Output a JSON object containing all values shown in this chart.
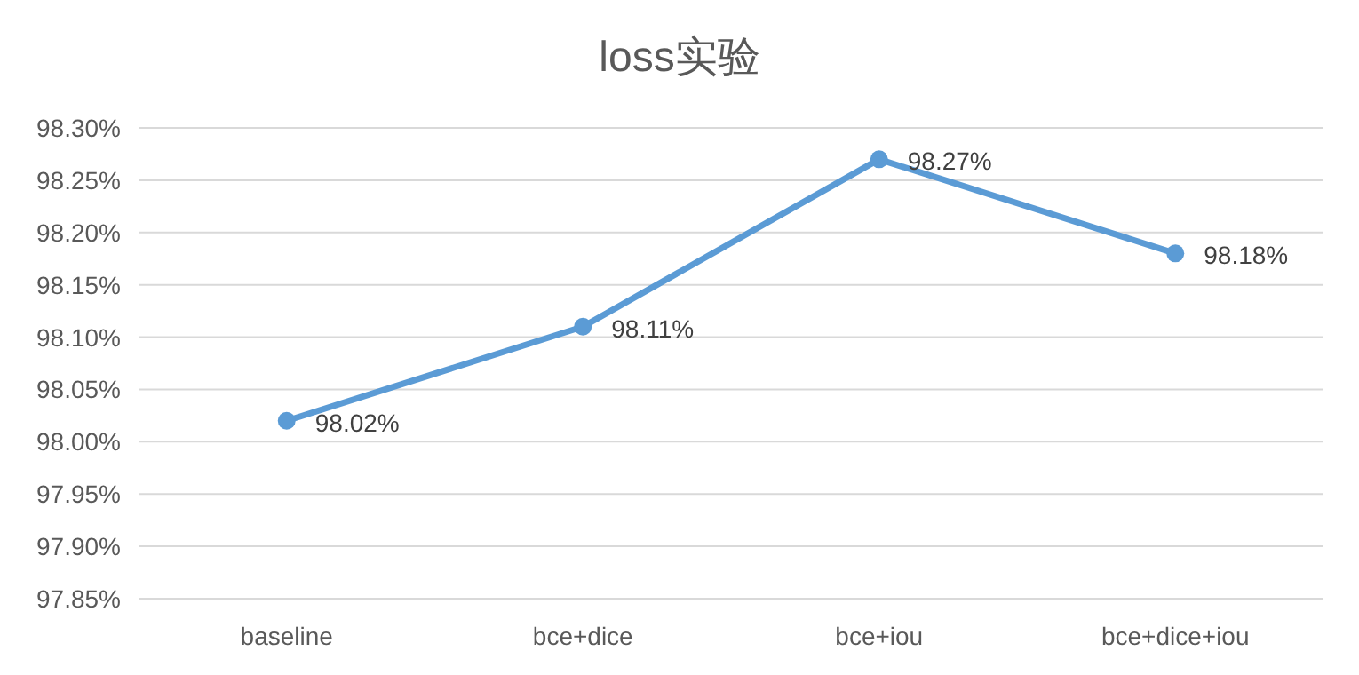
{
  "chart_data": {
    "type": "line",
    "title": "loss实验",
    "categories": [
      "baseline",
      "bce+dice",
      "bce+iou",
      "bce+dice+iou"
    ],
    "series": [
      {
        "color": "#5b9bd5",
        "values": [
          98.02,
          98.11,
          98.27,
          98.18
        ],
        "value_labels": [
          "98.02%",
          "98.11%",
          "98.27%",
          "98.18%"
        ]
      }
    ],
    "ylim": [
      97.85,
      98.3
    ],
    "yticks": [
      {
        "value": 97.85,
        "label": "97.85%"
      },
      {
        "value": 97.9,
        "label": "97.90%"
      },
      {
        "value": 97.95,
        "label": "97.95%"
      },
      {
        "value": 98.0,
        "label": "98.00%"
      },
      {
        "value": 98.05,
        "label": "98.05%"
      },
      {
        "value": 98.1,
        "label": "98.10%"
      },
      {
        "value": 98.15,
        "label": "98.15%"
      },
      {
        "value": 98.2,
        "label": "98.20%"
      },
      {
        "value": 98.25,
        "label": "98.25%"
      },
      {
        "value": 98.3,
        "label": "98.30%"
      }
    ],
    "grid": "y",
    "marker": "circle",
    "line_style": "solid"
  }
}
